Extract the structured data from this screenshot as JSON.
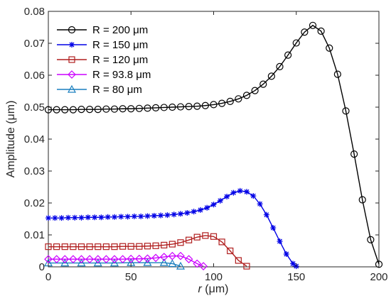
{
  "chart_data": {
    "type": "line",
    "xlabel_italic": "r",
    "xlabel_unit": " (μm)",
    "ylabel": "Amplitude (μm)",
    "xlim": [
      0,
      200
    ],
    "ylim": [
      0,
      0.08
    ],
    "xticks": [
      0,
      50,
      100,
      150,
      200
    ],
    "xtick_labels": [
      "0",
      "50",
      "100",
      "150",
      "200"
    ],
    "yticks": [
      0,
      0.01,
      0.02,
      0.03,
      0.04,
      0.05,
      0.06,
      0.07,
      0.08
    ],
    "ytick_labels": [
      "0",
      "0.01",
      "0.02",
      "0.03",
      "0.04",
      "0.05",
      "0.06",
      "0.07",
      "0.08"
    ],
    "grid": false,
    "legend_position": "top-left",
    "series": [
      {
        "name": "R = 200 μm",
        "color": "#000000",
        "marker": "circle",
        "x": [
          0,
          5,
          10,
          15,
          20,
          25,
          30,
          35,
          40,
          45,
          50,
          55,
          60,
          65,
          70,
          75,
          80,
          85,
          90,
          95,
          100,
          105,
          110,
          115,
          120,
          125,
          130,
          135,
          140,
          145,
          150,
          155,
          160,
          165,
          170,
          175,
          180,
          185,
          190,
          195,
          200
        ],
        "y": [
          0.0492,
          0.0492,
          0.0492,
          0.0492,
          0.0493,
          0.0493,
          0.0493,
          0.0494,
          0.0494,
          0.0495,
          0.0495,
          0.0496,
          0.0497,
          0.0498,
          0.0499,
          0.05,
          0.0501,
          0.0502,
          0.0503,
          0.0505,
          0.0508,
          0.0512,
          0.0518,
          0.0526,
          0.0537,
          0.0552,
          0.0572,
          0.0597,
          0.0627,
          0.0663,
          0.0701,
          0.0735,
          0.0756,
          0.0738,
          0.0685,
          0.0603,
          0.0488,
          0.0353,
          0.021,
          0.0085,
          0.0008
        ]
      },
      {
        "name": "R = 150 μm",
        "color": "#0000e6",
        "marker": "star",
        "x": [
          0,
          4,
          8,
          12,
          16,
          20,
          24,
          28,
          32,
          36,
          40,
          44,
          48,
          52,
          56,
          60,
          64,
          68,
          72,
          76,
          80,
          84,
          88,
          92,
          96,
          100,
          104,
          108,
          112,
          116,
          120,
          124,
          128,
          132,
          136,
          140,
          144,
          148,
          150
        ],
        "y": [
          0.0153,
          0.0153,
          0.0153,
          0.0154,
          0.0154,
          0.0154,
          0.0155,
          0.0155,
          0.0155,
          0.0156,
          0.0156,
          0.0157,
          0.0157,
          0.0158,
          0.0158,
          0.0159,
          0.016,
          0.0161,
          0.0162,
          0.0164,
          0.0166,
          0.0169,
          0.0173,
          0.0178,
          0.0185,
          0.0195,
          0.0207,
          0.022,
          0.0232,
          0.0238,
          0.0235,
          0.0222,
          0.0197,
          0.0163,
          0.0122,
          0.008,
          0.004,
          0.001,
          0.0002
        ]
      },
      {
        "name": "R = 120 μm",
        "color": "#b01e1e",
        "marker": "square",
        "x": [
          0,
          5,
          10,
          15,
          20,
          25,
          30,
          35,
          40,
          45,
          50,
          55,
          60,
          65,
          70,
          75,
          80,
          85,
          90,
          95,
          100,
          105,
          110,
          115,
          120
        ],
        "y": [
          0.0063,
          0.0063,
          0.0063,
          0.0063,
          0.0063,
          0.0063,
          0.0063,
          0.0063,
          0.0063,
          0.0064,
          0.0064,
          0.0064,
          0.0065,
          0.0066,
          0.0068,
          0.0071,
          0.0076,
          0.0084,
          0.0093,
          0.0098,
          0.0095,
          0.0078,
          0.005,
          0.002,
          0.0002
        ]
      },
      {
        "name": "R = 93.8 μm",
        "color": "#cc00ff",
        "marker": "diamond",
        "x": [
          0,
          5,
          10,
          15,
          20,
          25,
          30,
          35,
          40,
          45,
          50,
          55,
          60,
          65,
          70,
          75,
          80,
          85,
          90,
          93.8
        ],
        "y": [
          0.0024,
          0.0024,
          0.0024,
          0.0024,
          0.0024,
          0.0024,
          0.0024,
          0.0024,
          0.0024,
          0.0024,
          0.0025,
          0.0025,
          0.0026,
          0.0028,
          0.0031,
          0.0034,
          0.0034,
          0.0024,
          0.001,
          0.0002
        ]
      },
      {
        "name": "R = 80 μm",
        "color": "#1a7fbf",
        "marker": "triangle",
        "x": [
          0,
          10,
          20,
          30,
          40,
          50,
          60,
          70,
          75,
          80
        ],
        "y": [
          0.0012,
          0.0012,
          0.0012,
          0.0012,
          0.0012,
          0.0013,
          0.0013,
          0.0013,
          0.001,
          0.0002
        ]
      }
    ]
  }
}
